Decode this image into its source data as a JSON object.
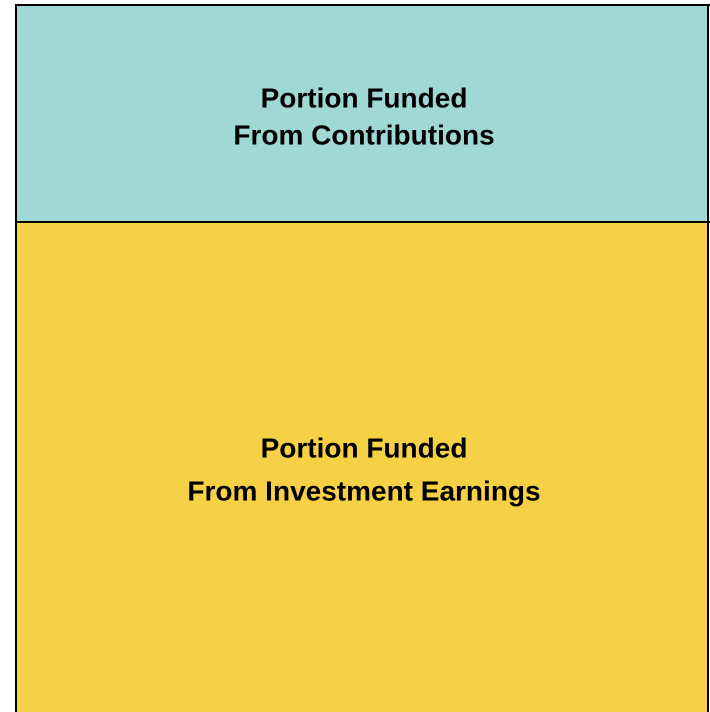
{
  "sections": [
    {
      "lines": [
        "Portion Funded",
        "From Contributions"
      ]
    },
    {
      "lines": [
        "Portion Funded",
        "From Investment Earnings"
      ]
    }
  ]
}
